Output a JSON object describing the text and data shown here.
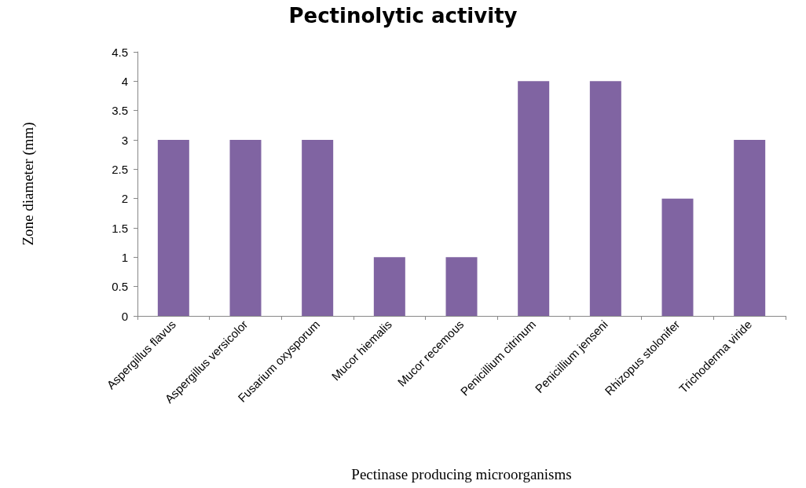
{
  "chart_data": {
    "type": "bar",
    "title": "Pectinolytic activity",
    "xlabel": "Pectinase producing microorganisms",
    "ylabel": "Zone diameter (mm)",
    "categories": [
      "Aspergillus flavus",
      "Aspergillus versicolor",
      "Fusarium oxysporum",
      "Mucor hiemalis",
      "Mucor recemous",
      "Penicillium citrinum",
      "Penicillium jenseni",
      "Rhizopus stolonifer",
      "Trichoderma viride"
    ],
    "values": [
      3,
      3,
      3,
      1,
      1,
      4,
      4,
      2,
      3
    ],
    "color": "#8064a2",
    "ylim": [
      0,
      4.5
    ],
    "yticks": [
      0,
      0.5,
      1,
      1.5,
      2,
      2.5,
      3,
      3.5,
      4,
      4.5
    ],
    "grid": false
  }
}
